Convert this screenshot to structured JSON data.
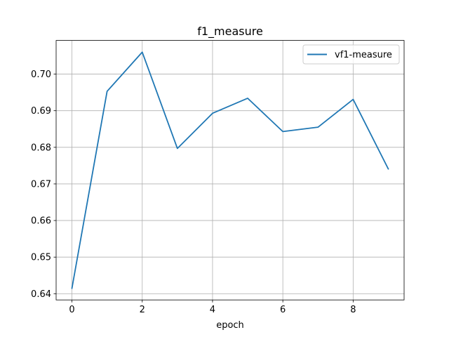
{
  "chart_data": {
    "type": "line",
    "title": "f1_measure",
    "xlabel": "epoch",
    "ylabel": "",
    "x": [
      0,
      1,
      2,
      3,
      4,
      5,
      6,
      7,
      8,
      9
    ],
    "series": [
      {
        "name": "vf1-measure",
        "color": "#1f77b4",
        "values": [
          0.6415,
          0.6953,
          0.706,
          0.6797,
          0.6893,
          0.6934,
          0.6843,
          0.6855,
          0.6931,
          0.6741
        ]
      }
    ],
    "xlim": [
      -0.45,
      9.45
    ],
    "ylim": [
      0.6383,
      0.7092
    ],
    "xticks": [
      {
        "value": 0,
        "label": "0"
      },
      {
        "value": 2,
        "label": "2"
      },
      {
        "value": 4,
        "label": "4"
      },
      {
        "value": 6,
        "label": "6"
      },
      {
        "value": 8,
        "label": "8"
      }
    ],
    "yticks": [
      {
        "value": 0.64,
        "label": "0.64"
      },
      {
        "value": 0.65,
        "label": "0.65"
      },
      {
        "value": 0.66,
        "label": "0.66"
      },
      {
        "value": 0.67,
        "label": "0.67"
      },
      {
        "value": 0.68,
        "label": "0.68"
      },
      {
        "value": 0.69,
        "label": "0.69"
      },
      {
        "value": 0.7,
        "label": "0.70"
      }
    ],
    "grid": true,
    "legend_position": "top-right"
  }
}
